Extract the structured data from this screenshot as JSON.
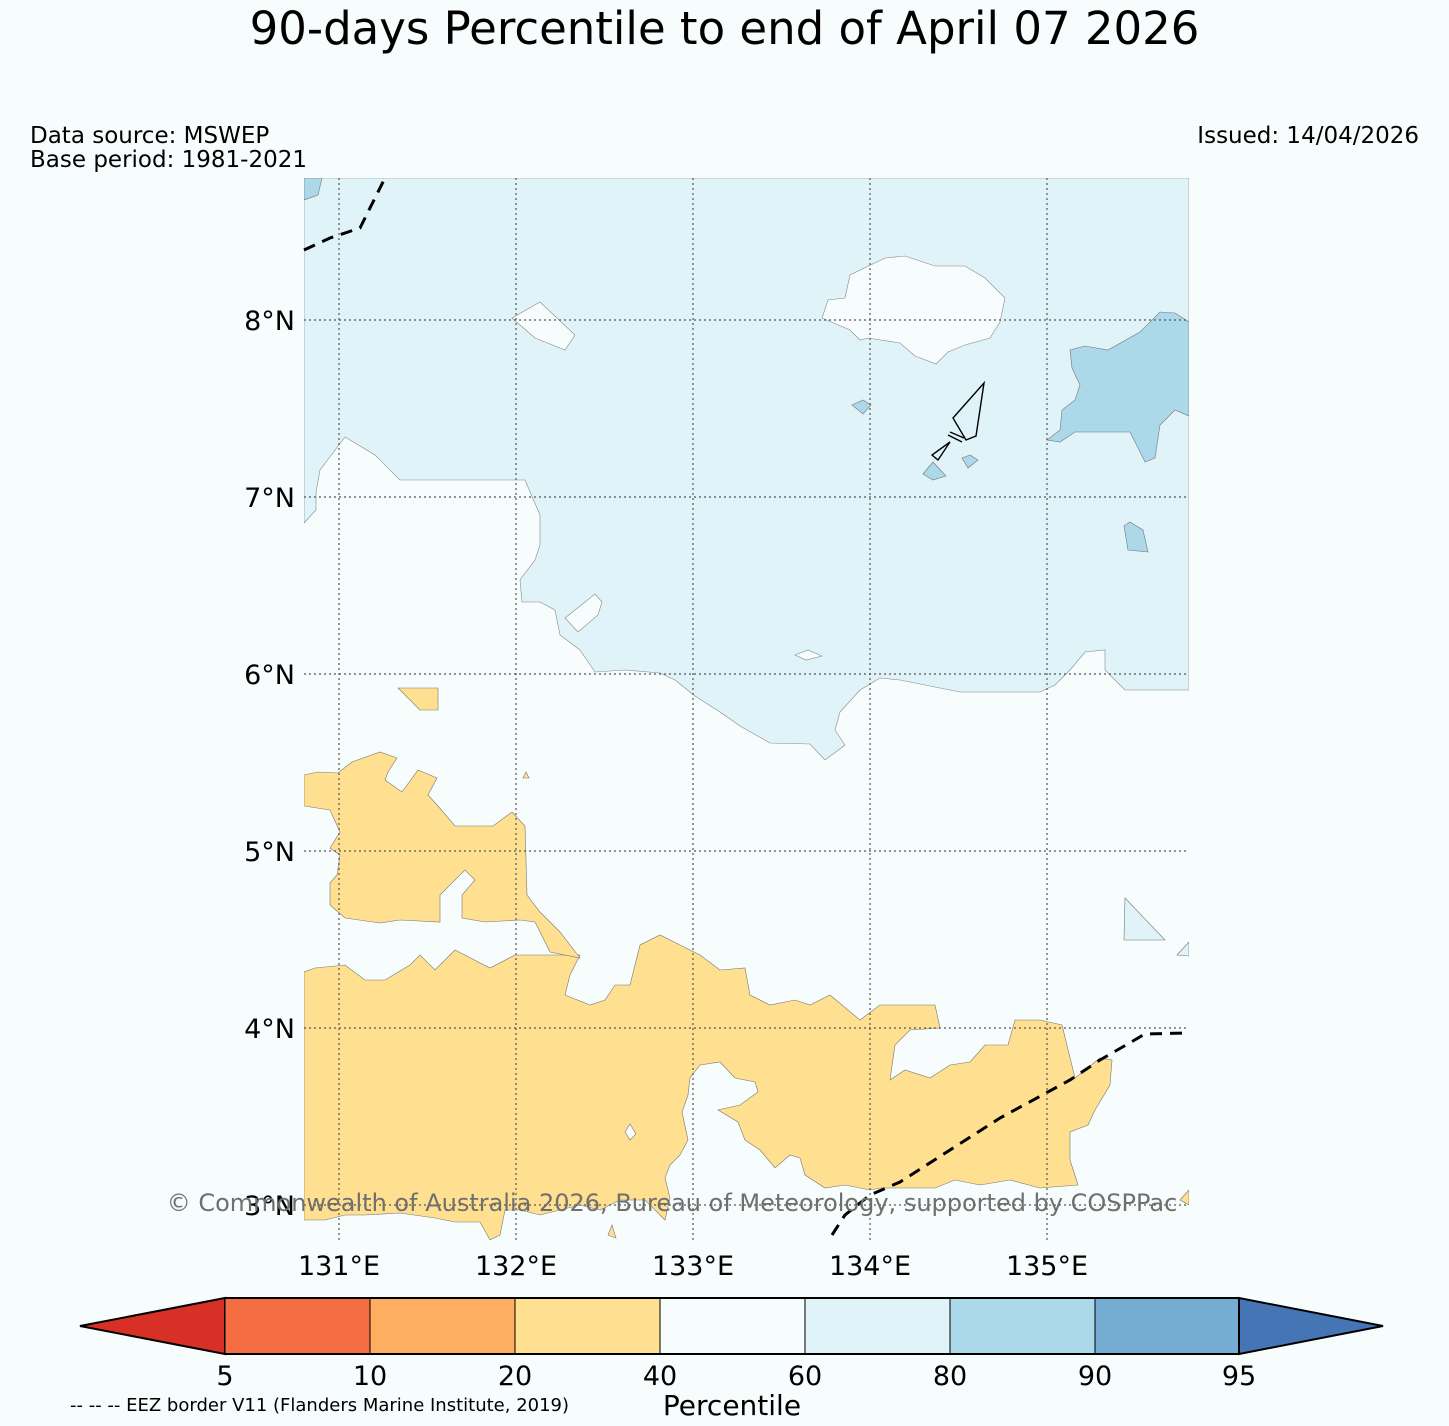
{
  "title": "90-days Percentile to end of April 07 2026",
  "data_source": "Data source: MSWEP",
  "base_period": "Base period: 1981-2021",
  "issued": "Issued: 14/04/2026",
  "lat_labels": [
    "8°N",
    "7°N",
    "6°N",
    "5°N",
    "4°N",
    "3°N"
  ],
  "lon_labels": [
    "131°E",
    "132°E",
    "133°E",
    "134°E",
    "135°E"
  ],
  "copyright": "© Commonwealth of Australia 2026, Bureau of Meteorology, supported by COSPPac",
  "eez_note": "-- -- -- EEZ border V11 (Flanders Marine Institute, 2019)",
  "colorbar": {
    "label": "Percentile",
    "ticks": [
      "5",
      "10",
      "20",
      "40",
      "60",
      "80",
      "90",
      "95"
    ],
    "colors": [
      "#d73027",
      "#f46d43",
      "#fdae61",
      "#fee090",
      "#f7fcfd",
      "#e0f3f8",
      "#abd9e9",
      "#74add1",
      "#4575b4"
    ]
  }
}
